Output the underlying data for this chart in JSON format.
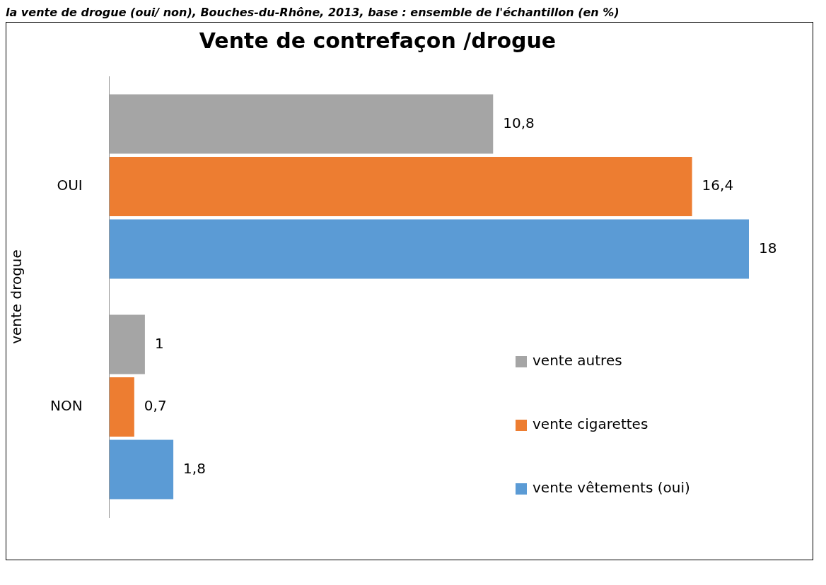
{
  "chart_data": {
    "type": "bar",
    "orientation": "horizontal",
    "title": "Vente de contrefaçon /drogue",
    "ylabel": "vente drogue",
    "categories": [
      "OUI",
      "NON"
    ],
    "series": [
      {
        "name": "vente autres",
        "color": "#a5a5a5",
        "values": [
          10.8,
          1
        ],
        "value_labels": [
          "10,8",
          "1"
        ]
      },
      {
        "name": "vente cigarettes",
        "color": "#ed7d31",
        "values": [
          16.4,
          0.7
        ],
        "value_labels": [
          "16,4",
          "0,7"
        ]
      },
      {
        "name": "vente vêtements (oui)",
        "color": "#5b9bd5",
        "values": [
          18,
          1.8
        ],
        "value_labels": [
          "18",
          "1,8"
        ]
      }
    ],
    "legend": "bottom right",
    "grid": false,
    "tick_labels": "y",
    "annotations": [
      "la vente de drogue (oui/ non), Bouches-du-Rhône, 2013, base : ensemble de l'échantillon (en %)"
    ]
  }
}
